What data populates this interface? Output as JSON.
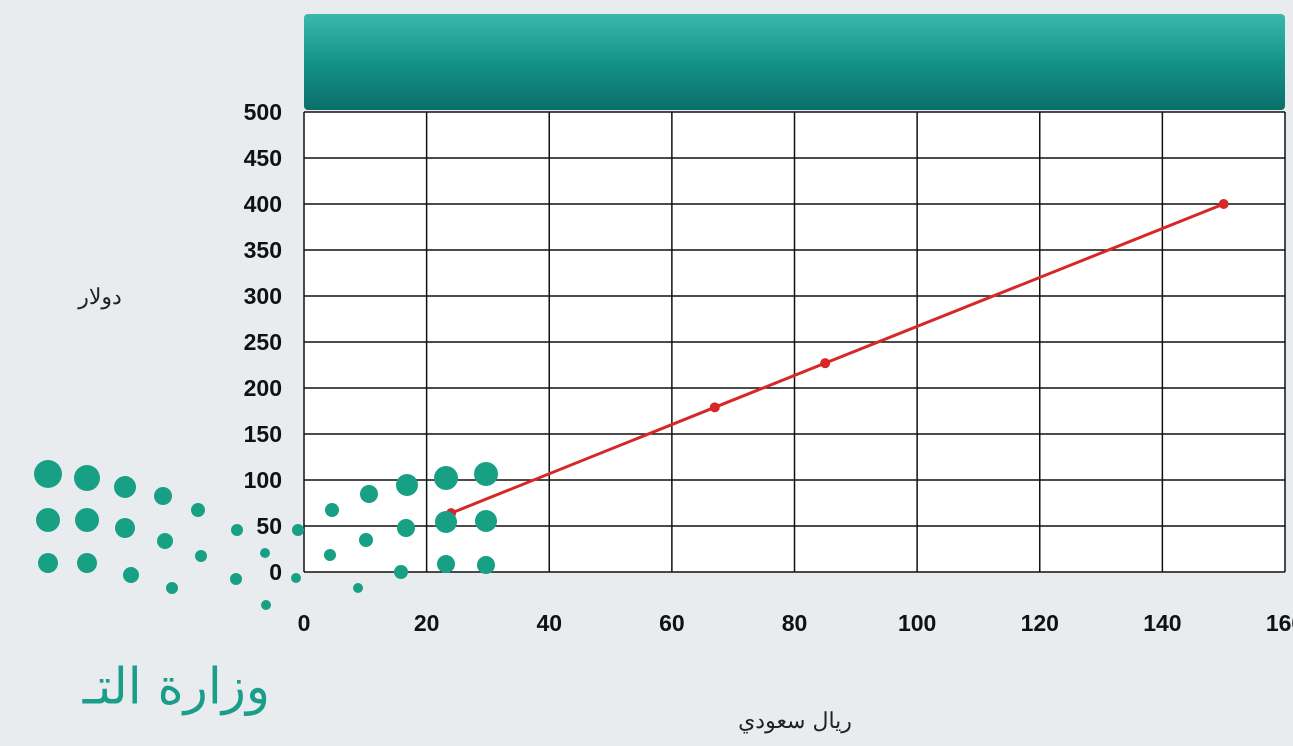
{
  "chart_data": {
    "type": "line",
    "x": [
      24,
      67,
      85,
      150
    ],
    "values": [
      64,
      179,
      227,
      400
    ],
    "color": "#d62828",
    "xlabel": "ريال سعودي",
    "ylabel": "دولار",
    "xlim": [
      0,
      160
    ],
    "xticks": [
      0,
      20,
      40,
      60,
      80,
      100,
      120,
      140,
      160
    ],
    "ylim": [
      0,
      500
    ],
    "yticks": [
      0,
      50,
      100,
      150,
      200,
      250,
      300,
      350,
      400,
      450,
      500
    ],
    "grid": true
  },
  "logo_text": "وزارة التـ"
}
